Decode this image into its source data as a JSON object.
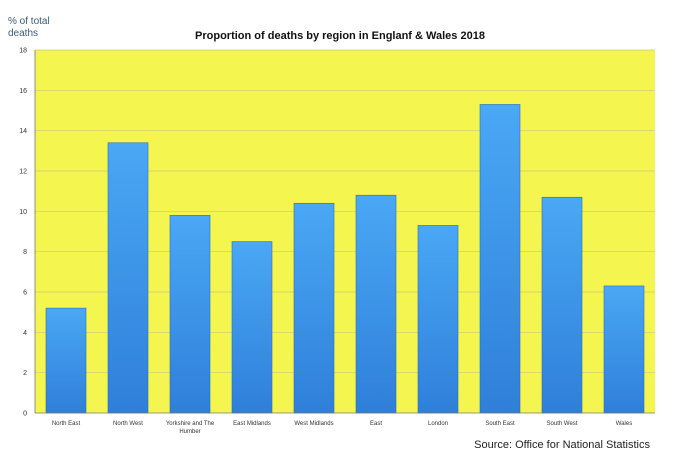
{
  "chart_data": {
    "type": "bar",
    "title": "Proportion of deaths by region in Englanf & Wales 2018",
    "ylabel_lines": [
      "% of total",
      "deaths"
    ],
    "xlabel": "",
    "categories": [
      "North East",
      "North West",
      "Yorkshire and The Humber",
      "East Midlands",
      "West Midlands",
      "East",
      "London",
      "South East",
      "South West",
      "Wales"
    ],
    "category_label_lines": [
      [
        "North East"
      ],
      [
        "North West"
      ],
      [
        "Yorkshire and The",
        "Humber"
      ],
      [
        "East Midlands"
      ],
      [
        "West Midlands"
      ],
      [
        "East"
      ],
      [
        "London"
      ],
      [
        "South East"
      ],
      [
        "South West"
      ],
      [
        "Wales"
      ]
    ],
    "values": [
      5.2,
      13.4,
      9.8,
      8.5,
      10.4,
      10.8,
      9.3,
      15.3,
      10.7,
      6.3
    ],
    "ylim": [
      0,
      18
    ],
    "yticks": [
      0,
      2,
      4,
      6,
      8,
      10,
      12,
      14,
      16,
      18
    ],
    "grid": true,
    "legend": "none",
    "plot_background": "#f5f54f",
    "bar_color_top": "#4aa8f5",
    "bar_color_bottom": "#2f7fd9",
    "source": "Source: Office for National Statistics"
  }
}
